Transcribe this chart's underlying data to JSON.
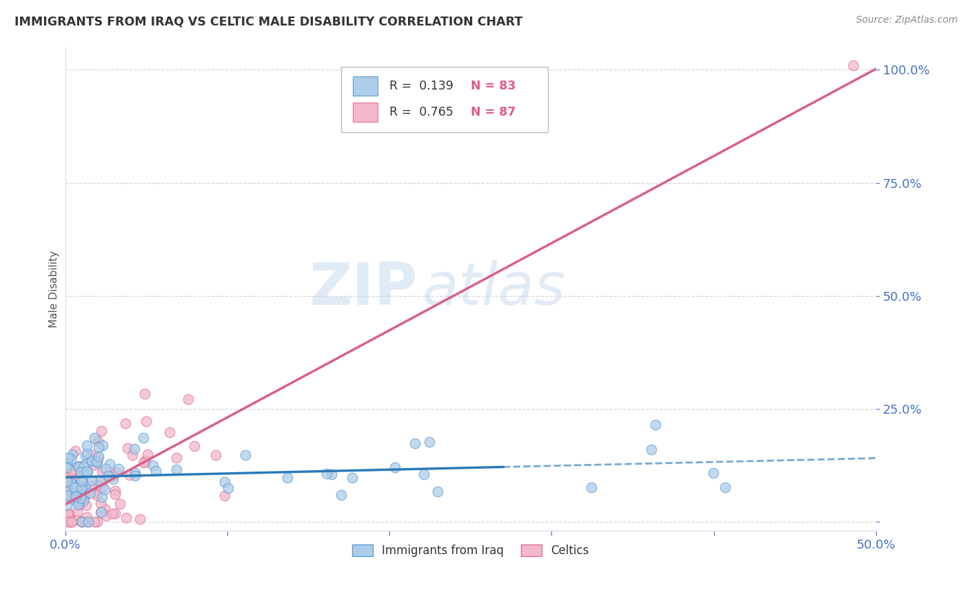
{
  "title": "IMMIGRANTS FROM IRAQ VS CELTIC MALE DISABILITY CORRELATION CHART",
  "source": "Source: ZipAtlas.com",
  "ylabel_label": "Male Disability",
  "x_min": 0.0,
  "x_max": 0.5,
  "y_min": -0.02,
  "y_max": 1.05,
  "series1_name": "Immigrants from Iraq",
  "series1_color": "#aecde8",
  "series1_edge_color": "#5b9bd5",
  "series1_line_color": "#2b7bba",
  "series1_R": 0.139,
  "series1_N": 83,
  "series2_name": "Celtics",
  "series2_color": "#f4b8cc",
  "series2_edge_color": "#e07090",
  "series2_line_color": "#d95f8a",
  "series2_R": 0.765,
  "series2_N": 87,
  "watermark_zip": "ZIP",
  "watermark_atlas": "atlas",
  "background_color": "#ffffff",
  "grid_color": "#cccccc",
  "tick_color": "#4472c4",
  "legend_r_color": "#333333",
  "legend_n_color": "#e05c8a",
  "axis_label_color": "#555555",
  "title_color": "#333333",
  "source_color": "#888888"
}
